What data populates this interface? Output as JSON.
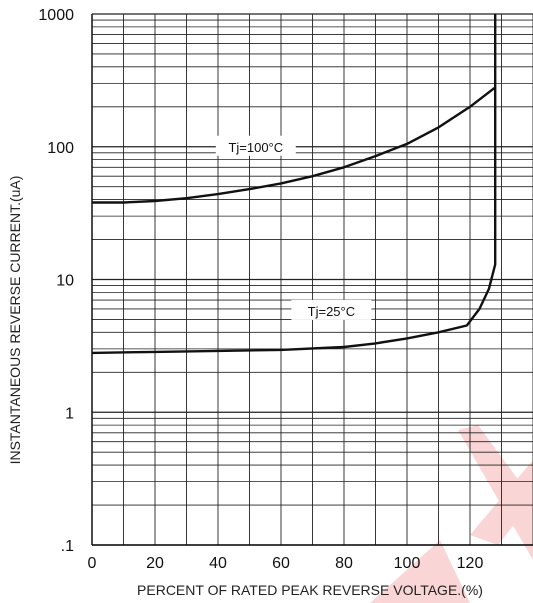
{
  "chart_data": {
    "type": "line",
    "title": "",
    "xlabel": "PERCENT OF RATED PEAK REVERSE VOLTAGE.(%)",
    "ylabel": "INSTANTANEOUS REVERSE CURRENT.(uA)",
    "x_scale": "linear",
    "y_scale": "log",
    "xlim": [
      0,
      140
    ],
    "ylim": [
      0.1,
      1000
    ],
    "x_ticks": [
      "0",
      "20",
      "40",
      "60",
      "80",
      "100",
      "120"
    ],
    "y_ticks": [
      ".1",
      "1",
      "10",
      "100",
      "1000"
    ],
    "grid": true,
    "legend": "none",
    "series": [
      {
        "name": "Tj=100°C",
        "color": "#111111",
        "x": [
          0,
          10,
          20,
          30,
          40,
          50,
          60,
          70,
          80,
          90,
          100,
          110,
          120,
          128
        ],
        "y": [
          38,
          38,
          39,
          41,
          44,
          48,
          53,
          60,
          70,
          85,
          105,
          140,
          200,
          280
        ]
      },
      {
        "name": "Tj=25°C",
        "color": "#111111",
        "x": [
          0,
          20,
          40,
          60,
          80,
          90,
          100,
          110,
          119,
          123,
          126,
          128,
          128,
          128
        ],
        "y": [
          2.8,
          2.85,
          2.9,
          2.95,
          3.1,
          3.3,
          3.6,
          4.0,
          4.5,
          6.0,
          8.5,
          13,
          100,
          1000
        ]
      }
    ]
  }
}
